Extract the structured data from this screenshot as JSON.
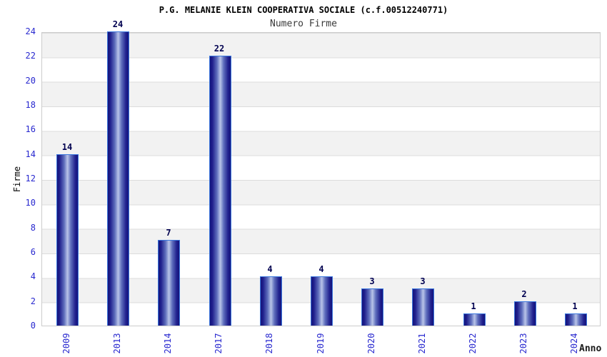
{
  "chart_data": {
    "type": "bar",
    "title": "P.G. MELANIE KLEIN COOPERATIVA SOCIALE (c.f.00512240771)",
    "subtitle": "Numero Firme",
    "xlabel": "Anno",
    "ylabel": "Firme",
    "categories": [
      "2009",
      "2013",
      "2014",
      "2017",
      "2018",
      "2019",
      "2020",
      "2021",
      "2022",
      "2023",
      "2024"
    ],
    "values": [
      14,
      24,
      7,
      22,
      4,
      4,
      3,
      3,
      1,
      2,
      1
    ],
    "ylim": [
      0,
      24
    ],
    "ytick_step": 2,
    "yticks": [
      0,
      2,
      4,
      6,
      8,
      10,
      12,
      14,
      16,
      18,
      20,
      22,
      24
    ],
    "grid": "alternating-horizontal-bands-every-2-units",
    "legend": "none",
    "colors": {
      "bar_dark": "#14147c",
      "bar_light_center": "#b9c4e8",
      "bar_border": "#3b77dd",
      "axis_tick_label": "#2828cf",
      "value_label": "#000050",
      "title": "#000000",
      "subtitle": "#3a3a3a",
      "band_gray": "#f2f2f2",
      "band_white": "#ffffff",
      "gridline": "#dcdcdc",
      "plot_border": "#cccccc",
      "background": "#ffffff"
    }
  }
}
